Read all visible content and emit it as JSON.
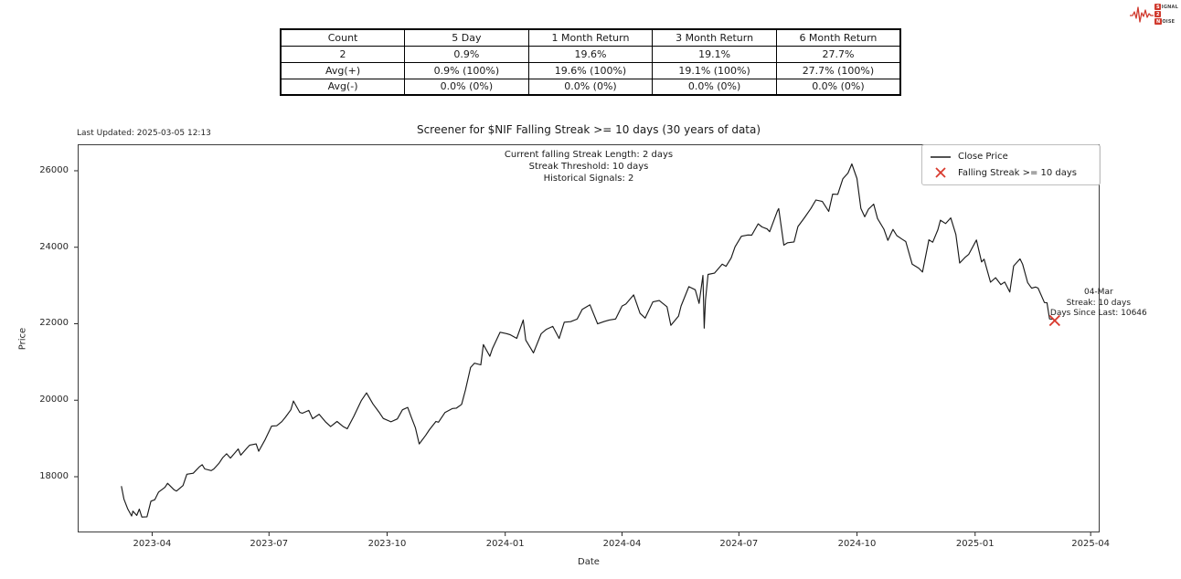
{
  "logo": {
    "l1_box": "S",
    "l1_rest": "IGNAL",
    "l2_box": "2",
    "l3_box": "N",
    "l3_rest": "OISE"
  },
  "header": {
    "last_updated": "Last Updated: 2025-03-05 12:13"
  },
  "stats_table": {
    "headers": [
      "Count",
      "5 Day",
      "1 Month Return",
      "3 Month Return",
      "6 Month Return"
    ],
    "rows": [
      [
        "2",
        "0.9%",
        "19.6%",
        "19.1%",
        "27.7%"
      ],
      [
        "Avg(+)",
        "0.9% (100%)",
        "19.6% (100%)",
        "19.1% (100%)",
        "27.7% (100%)"
      ],
      [
        "Avg(-)",
        "0.0% (0%)",
        "0.0% (0%)",
        "0.0% (0%)",
        "0.0% (0%)"
      ]
    ]
  },
  "chart_data": {
    "type": "line",
    "title": "Screener for $NIF Falling Streak >= 10 days (30 years of data)",
    "xlabel": "Date",
    "ylabel": "Price",
    "legend": [
      "Close Price",
      "Falling Streak >= 10 days"
    ],
    "legend_position": "upper right",
    "grid": false,
    "annotations": {
      "stats": [
        "Current falling Streak Length: 2 days",
        "Streak Threshold: 10 days",
        "Historical Signals: 2"
      ],
      "signal": [
        "04-Mar",
        "Streak: 10 days",
        "Days Since Last: 10646"
      ]
    },
    "line_color": "#1a1a1a",
    "marker_color": "#d93a2e",
    "x_domain": [
      "2023-02-02",
      "2025-04-08"
    ],
    "ylim": [
      16543,
      26692
    ],
    "yticks": [
      "18000",
      "20000",
      "22000",
      "24000",
      "26000"
    ],
    "xticks": [
      {
        "label": "2023-04",
        "date": "2023-04-01"
      },
      {
        "label": "2023-07",
        "date": "2023-07-01"
      },
      {
        "label": "2023-10",
        "date": "2023-10-01"
      },
      {
        "label": "2024-01",
        "date": "2024-01-01"
      },
      {
        "label": "2024-04",
        "date": "2024-04-01"
      },
      {
        "label": "2024-07",
        "date": "2024-07-01"
      },
      {
        "label": "2024-10",
        "date": "2024-10-01"
      },
      {
        "label": "2025-01",
        "date": "2025-01-01"
      },
      {
        "label": "2025-04",
        "date": "2025-04-01"
      }
    ],
    "signals": [
      {
        "date": "2025-03-04",
        "value": 22083
      }
    ],
    "series": [
      {
        "name": "Close Price",
        "points": [
          [
            "2023-03-08",
            17754
          ],
          [
            "2023-03-10",
            17413
          ],
          [
            "2023-03-13",
            17154
          ],
          [
            "2023-03-16",
            16972
          ],
          [
            "2023-03-17",
            17100
          ],
          [
            "2023-03-20",
            16988
          ],
          [
            "2023-03-22",
            17152
          ],
          [
            "2023-03-24",
            16945
          ],
          [
            "2023-03-28",
            16952
          ],
          [
            "2023-03-31",
            17360
          ],
          [
            "2023-04-03",
            17398
          ],
          [
            "2023-04-06",
            17599
          ],
          [
            "2023-04-11",
            17722
          ],
          [
            "2023-04-13",
            17828
          ],
          [
            "2023-04-18",
            17660
          ],
          [
            "2023-04-20",
            17624
          ],
          [
            "2023-04-25",
            17769
          ],
          [
            "2023-04-28",
            18065
          ],
          [
            "2023-05-03",
            18090
          ],
          [
            "2023-05-08",
            18264
          ],
          [
            "2023-05-10",
            18315
          ],
          [
            "2023-05-12",
            18203
          ],
          [
            "2023-05-17",
            18160
          ],
          [
            "2023-05-19",
            18203
          ],
          [
            "2023-05-23",
            18348
          ],
          [
            "2023-05-26",
            18499
          ],
          [
            "2023-05-29",
            18599
          ],
          [
            "2023-06-01",
            18488
          ],
          [
            "2023-06-07",
            18726
          ],
          [
            "2023-06-09",
            18563
          ],
          [
            "2023-06-14",
            18755
          ],
          [
            "2023-06-16",
            18826
          ],
          [
            "2023-06-21",
            18856
          ],
          [
            "2023-06-23",
            18665
          ],
          [
            "2023-06-28",
            18972
          ],
          [
            "2023-07-03",
            19322
          ],
          [
            "2023-07-07",
            19332
          ],
          [
            "2023-07-11",
            19439
          ],
          [
            "2023-07-14",
            19565
          ],
          [
            "2023-07-18",
            19749
          ],
          [
            "2023-07-20",
            19979
          ],
          [
            "2023-07-25",
            19681
          ],
          [
            "2023-07-27",
            19660
          ],
          [
            "2023-08-01",
            19734
          ],
          [
            "2023-08-04",
            19517
          ],
          [
            "2023-08-09",
            19633
          ],
          [
            "2023-08-14",
            19435
          ],
          [
            "2023-08-18",
            19310
          ],
          [
            "2023-08-23",
            19444
          ],
          [
            "2023-08-28",
            19306
          ],
          [
            "2023-08-31",
            19254
          ],
          [
            "2023-09-05",
            19575
          ],
          [
            "2023-09-11",
            19996
          ],
          [
            "2023-09-15",
            20192
          ],
          [
            "2023-09-20",
            19902
          ],
          [
            "2023-09-25",
            19674
          ],
          [
            "2023-09-28",
            19523
          ],
          [
            "2023-10-04",
            19436
          ],
          [
            "2023-10-09",
            19512
          ],
          [
            "2023-10-13",
            19751
          ],
          [
            "2023-10-17",
            19811
          ],
          [
            "2023-10-20",
            19542
          ],
          [
            "2023-10-23",
            19282
          ],
          [
            "2023-10-26",
            18857
          ],
          [
            "2023-10-31",
            19080
          ],
          [
            "2023-11-03",
            19230
          ],
          [
            "2023-11-08",
            19444
          ],
          [
            "2023-11-10",
            19425
          ],
          [
            "2023-11-15",
            19675
          ],
          [
            "2023-11-21",
            19783
          ],
          [
            "2023-11-24",
            19794
          ],
          [
            "2023-11-28",
            19890
          ],
          [
            "2023-12-01",
            20268
          ],
          [
            "2023-12-05",
            20855
          ],
          [
            "2023-12-08",
            20969
          ],
          [
            "2023-12-13",
            20926
          ],
          [
            "2023-12-15",
            21456
          ],
          [
            "2023-12-20",
            21150
          ],
          [
            "2023-12-22",
            21349
          ],
          [
            "2023-12-28",
            21778
          ],
          [
            "2024-01-02",
            21742
          ],
          [
            "2024-01-05",
            21711
          ],
          [
            "2024-01-10",
            21618
          ],
          [
            "2024-01-15",
            22097
          ],
          [
            "2024-01-17",
            21572
          ],
          [
            "2024-01-23",
            21238
          ],
          [
            "2024-01-29",
            21737
          ],
          [
            "2024-02-02",
            21854
          ],
          [
            "2024-02-07",
            21930
          ],
          [
            "2024-02-12",
            21616
          ],
          [
            "2024-02-16",
            22041
          ],
          [
            "2024-02-21",
            22055
          ],
          [
            "2024-02-26",
            22122
          ],
          [
            "2024-03-01",
            22378
          ],
          [
            "2024-03-07",
            22494
          ],
          [
            "2024-03-13",
            21998
          ],
          [
            "2024-03-18",
            22056
          ],
          [
            "2024-03-22",
            22097
          ],
          [
            "2024-03-27",
            22123
          ],
          [
            "2024-04-01",
            22462
          ],
          [
            "2024-04-04",
            22515
          ],
          [
            "2024-04-10",
            22754
          ],
          [
            "2024-04-15",
            22272
          ],
          [
            "2024-04-19",
            22147
          ],
          [
            "2024-04-25",
            22570
          ],
          [
            "2024-04-30",
            22605
          ],
          [
            "2024-05-06",
            22443
          ],
          [
            "2024-05-09",
            21958
          ],
          [
            "2024-05-15",
            22200
          ],
          [
            "2024-05-17",
            22466
          ],
          [
            "2024-05-23",
            22968
          ],
          [
            "2024-05-28",
            22888
          ],
          [
            "2024-05-31",
            22531
          ],
          [
            "2024-06-03",
            23264
          ],
          [
            "2024-06-04",
            21885
          ],
          [
            "2024-06-05",
            22620
          ],
          [
            "2024-06-07",
            23290
          ],
          [
            "2024-06-12",
            23323
          ],
          [
            "2024-06-18",
            23558
          ],
          [
            "2024-06-21",
            23501
          ],
          [
            "2024-06-25",
            23721
          ],
          [
            "2024-06-28",
            24011
          ],
          [
            "2024-07-03",
            24287
          ],
          [
            "2024-07-08",
            24320
          ],
          [
            "2024-07-11",
            24316
          ],
          [
            "2024-07-16",
            24613
          ],
          [
            "2024-07-19",
            24531
          ],
          [
            "2024-07-23",
            24479
          ],
          [
            "2024-07-25",
            24406
          ],
          [
            "2024-07-31",
            24951
          ],
          [
            "2024-08-01",
            25011
          ],
          [
            "2024-08-05",
            24056
          ],
          [
            "2024-08-08",
            24117
          ],
          [
            "2024-08-13",
            24139
          ],
          [
            "2024-08-16",
            24541
          ],
          [
            "2024-08-21",
            24770
          ],
          [
            "2024-08-26",
            25010
          ],
          [
            "2024-08-30",
            25236
          ],
          [
            "2024-09-04",
            25198
          ],
          [
            "2024-09-09",
            24936
          ],
          [
            "2024-09-12",
            25389
          ],
          [
            "2024-09-16",
            25384
          ],
          [
            "2024-09-20",
            25791
          ],
          [
            "2024-09-24",
            25940
          ],
          [
            "2024-09-27",
            26179
          ],
          [
            "2024-10-01",
            25797
          ],
          [
            "2024-10-04",
            25014
          ],
          [
            "2024-10-07",
            24796
          ],
          [
            "2024-10-10",
            24998
          ],
          [
            "2024-10-14",
            25128
          ],
          [
            "2024-10-17",
            24750
          ],
          [
            "2024-10-22",
            24472
          ],
          [
            "2024-10-25",
            24181
          ],
          [
            "2024-10-29",
            24467
          ],
          [
            "2024-11-01",
            24304
          ],
          [
            "2024-11-05",
            24213
          ],
          [
            "2024-11-08",
            24148
          ],
          [
            "2024-11-13",
            23559
          ],
          [
            "2024-11-18",
            23454
          ],
          [
            "2024-11-21",
            23350
          ],
          [
            "2024-11-26",
            24194
          ],
          [
            "2024-11-29",
            24131
          ],
          [
            "2024-12-03",
            24457
          ],
          [
            "2024-12-05",
            24708
          ],
          [
            "2024-12-09",
            24619
          ],
          [
            "2024-12-13",
            24768
          ],
          [
            "2024-12-17",
            24336
          ],
          [
            "2024-12-20",
            23588
          ],
          [
            "2024-12-24",
            23728
          ],
          [
            "2024-12-27",
            23813
          ],
          [
            "2025-01-02",
            24189
          ],
          [
            "2025-01-06",
            23616
          ],
          [
            "2025-01-08",
            23689
          ],
          [
            "2025-01-13",
            23086
          ],
          [
            "2025-01-17",
            23203
          ],
          [
            "2025-01-21",
            23025
          ],
          [
            "2025-01-24",
            23092
          ],
          [
            "2025-01-28",
            22829
          ],
          [
            "2025-01-31",
            23508
          ],
          [
            "2025-02-05",
            23696
          ],
          [
            "2025-02-07",
            23560
          ],
          [
            "2025-02-11",
            23072
          ],
          [
            "2025-02-14",
            22929
          ],
          [
            "2025-02-17",
            22959
          ],
          [
            "2025-02-19",
            22933
          ],
          [
            "2025-02-24",
            22553
          ],
          [
            "2025-02-26",
            22547
          ],
          [
            "2025-02-28",
            22125
          ],
          [
            "2025-03-03",
            22119
          ],
          [
            "2025-03-04",
            22083
          ]
        ]
      }
    ]
  }
}
